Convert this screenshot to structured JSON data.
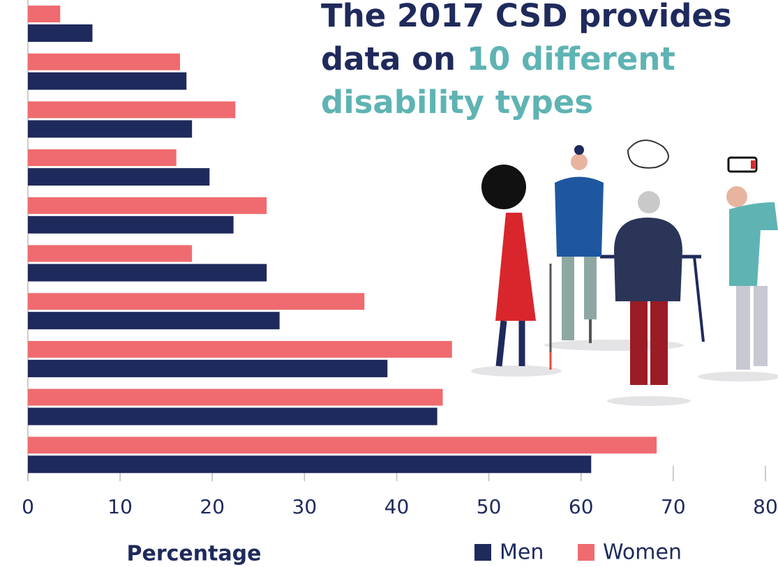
{
  "chart_data": {
    "type": "barh",
    "title": "The 2017 CSD provides data on",
    "title_highlight": "10 different disability types",
    "x_label": "Percentage",
    "categories": [
      null,
      null,
      null,
      null,
      null,
      null,
      null,
      null,
      null,
      null
    ],
    "series": [
      {
        "name": "Men",
        "color": "#1f2a5c",
        "values": [
          7.0,
          17.2,
          17.8,
          19.7,
          22.3,
          25.9,
          27.3,
          39.0,
          44.4,
          61.1
        ]
      },
      {
        "name": "Women",
        "color": "#ef6b6f",
        "values": [
          3.5,
          16.5,
          22.5,
          16.1,
          25.9,
          17.8,
          36.5,
          46.0,
          45.0,
          68.2
        ]
      }
    ],
    "xlim": [
      0,
      80
    ],
    "xticks": [
      0,
      10,
      20,
      30,
      40,
      50,
      60,
      70,
      80
    ],
    "title_color": "#1f2a5c",
    "highlight_color": "#5fb3b3"
  }
}
